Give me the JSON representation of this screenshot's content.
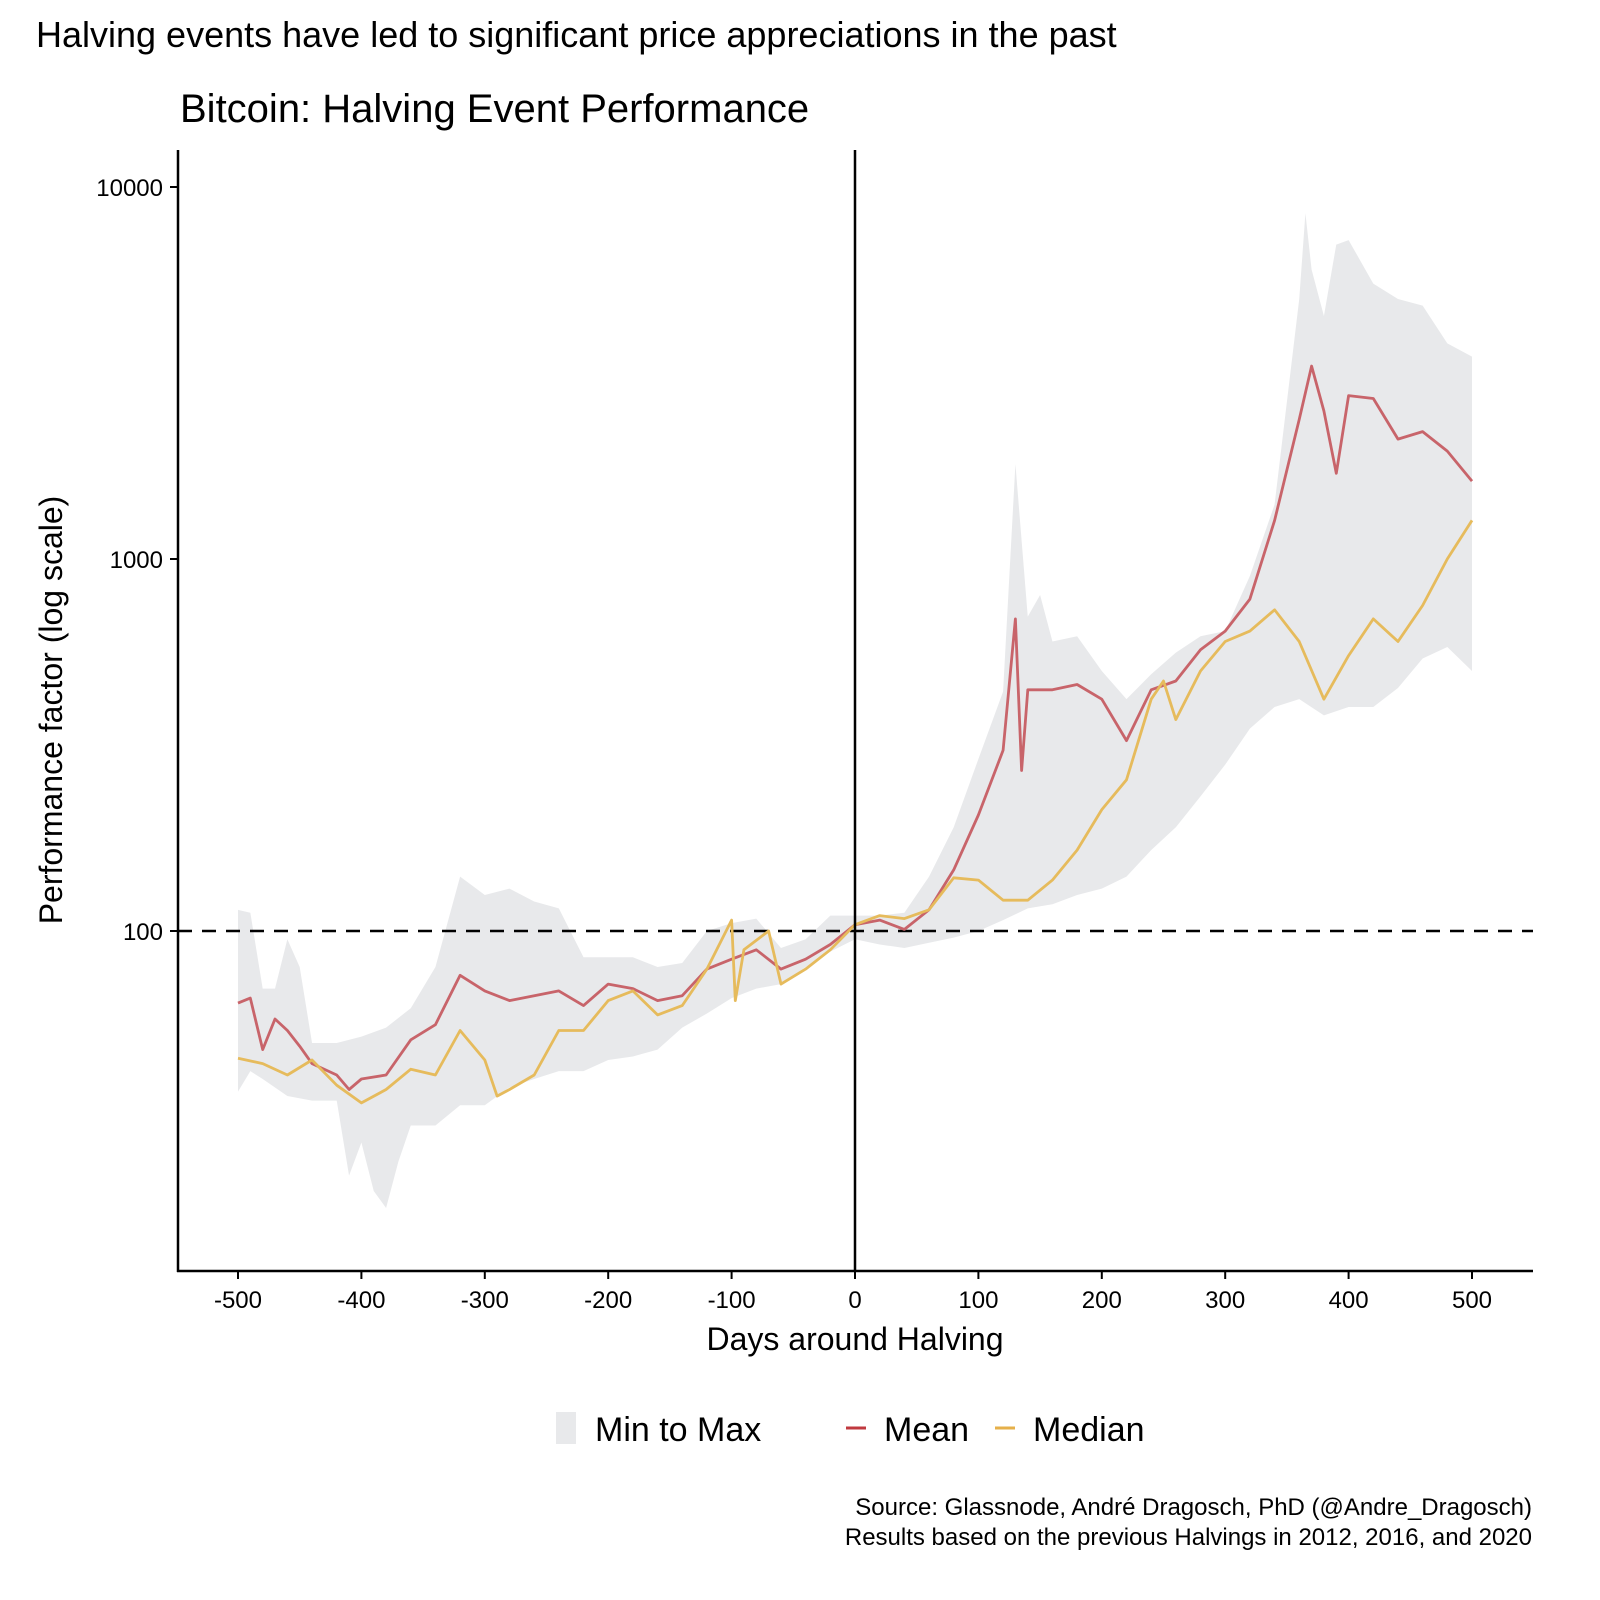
{
  "headline": "Halving events have led to significant price appreciations in the past",
  "chart_data": {
    "type": "line",
    "title": "Bitcoin: Halving Event Performance",
    "xlabel": "Days around Halving",
    "ylabel": "Performance factor (log scale)",
    "xlim": [
      -550,
      550
    ],
    "ylim": [
      12.2,
      12600
    ],
    "y_scale": "log",
    "grid": false,
    "x_ticks": [
      -500,
      -400,
      -300,
      -200,
      -100,
      0,
      100,
      200,
      300,
      400,
      500
    ],
    "x_tick_labels": [
      "-500",
      "-400",
      "-300",
      "-200",
      "-100",
      "0",
      "100",
      "200",
      "300",
      "400",
      "500"
    ],
    "y_ticks": [
      100,
      1000,
      10000
    ],
    "y_tick_labels": [
      "100",
      "1000",
      "10000"
    ],
    "reference_lines": {
      "horizontal": 100,
      "vertical": 0
    },
    "legend_position": "bottom",
    "legend": [
      "Min to Max",
      "Mean",
      "Median"
    ],
    "band": {
      "name": "Min to Max",
      "color": "#e8e9eb",
      "max": {
        "x": [
          -500,
          -490,
          -480,
          -470,
          -460,
          -450,
          -440,
          -420,
          -400,
          -380,
          -360,
          -340,
          -320,
          -300,
          -280,
          -260,
          -240,
          -220,
          -200,
          -180,
          -160,
          -140,
          -120,
          -100,
          -80,
          -60,
          -40,
          -20,
          0,
          20,
          40,
          60,
          80,
          100,
          120,
          130,
          140,
          150,
          160,
          180,
          200,
          220,
          240,
          260,
          280,
          300,
          320,
          340,
          360,
          365,
          370,
          380,
          390,
          400,
          420,
          440,
          460,
          480,
          500
        ],
        "y": [
          114,
          112,
          70,
          70,
          95,
          80,
          50,
          50,
          52,
          55,
          62,
          80,
          140,
          125,
          130,
          120,
          115,
          85,
          85,
          85,
          80,
          82,
          100,
          105,
          108,
          90,
          95,
          110,
          110,
          110,
          112,
          140,
          190,
          290,
          440,
          1800,
          700,
          800,
          600,
          620,
          500,
          420,
          490,
          560,
          620,
          640,
          900,
          1400,
          5000,
          8500,
          6000,
          4500,
          7000,
          7200,
          5500,
          5000,
          4800,
          3800,
          3500
        ]
      },
      "min": {
        "x": [
          -500,
          -490,
          -480,
          -460,
          -440,
          -420,
          -410,
          -400,
          -390,
          -380,
          -370,
          -360,
          -340,
          -320,
          -300,
          -280,
          -260,
          -240,
          -220,
          -200,
          -180,
          -160,
          -140,
          -120,
          -100,
          -80,
          -60,
          -40,
          -20,
          0,
          20,
          40,
          60,
          80,
          100,
          120,
          140,
          160,
          180,
          200,
          220,
          240,
          260,
          280,
          300,
          320,
          340,
          360,
          380,
          400,
          420,
          440,
          460,
          480,
          500
        ],
        "y": [
          37,
          42,
          40,
          36,
          35,
          35,
          22,
          27,
          20,
          18,
          24,
          30,
          30,
          34,
          34,
          38,
          40,
          42,
          42,
          45,
          46,
          48,
          55,
          60,
          66,
          70,
          72,
          80,
          88,
          95,
          92,
          90,
          93,
          96,
          100,
          107,
          115,
          118,
          125,
          130,
          140,
          165,
          190,
          230,
          280,
          350,
          400,
          420,
          380,
          400,
          400,
          450,
          540,
          580,
          500
        ]
      }
    },
    "series": [
      {
        "name": "Mean",
        "color": "#c8646a",
        "x": [
          -500,
          -490,
          -480,
          -470,
          -460,
          -450,
          -440,
          -420,
          -410,
          -400,
          -380,
          -360,
          -340,
          -320,
          -300,
          -280,
          -260,
          -240,
          -220,
          -200,
          -180,
          -160,
          -140,
          -120,
          -100,
          -80,
          -60,
          -40,
          -20,
          0,
          20,
          40,
          60,
          80,
          100,
          120,
          130,
          135,
          140,
          160,
          180,
          200,
          220,
          240,
          260,
          280,
          300,
          320,
          340,
          360,
          370,
          380,
          390,
          400,
          420,
          440,
          460,
          480,
          500
        ],
        "y": [
          64,
          66,
          48,
          58,
          54,
          49,
          44,
          41,
          37.5,
          40,
          41,
          51,
          56,
          76,
          69,
          65,
          67,
          69,
          63,
          72,
          70,
          65,
          67,
          79,
          84,
          89,
          79,
          84,
          92,
          104,
          107,
          101,
          114,
          146,
          205,
          306,
          690,
          270,
          445,
          445,
          460,
          420,
          325,
          445,
          470,
          570,
          640,
          780,
          1270,
          2370,
          3300,
          2500,
          1700,
          2750,
          2700,
          2100,
          2200,
          1950,
          1620
        ]
      },
      {
        "name": "Median",
        "color": "#e6bb5c",
        "x": [
          -500,
          -480,
          -460,
          -440,
          -420,
          -400,
          -380,
          -360,
          -340,
          -320,
          -300,
          -290,
          -280,
          -260,
          -240,
          -220,
          -200,
          -180,
          -160,
          -140,
          -120,
          -100,
          -97,
          -90,
          -70,
          -60,
          -40,
          -20,
          0,
          20,
          40,
          60,
          80,
          100,
          120,
          140,
          160,
          180,
          200,
          220,
          240,
          250,
          260,
          280,
          300,
          320,
          340,
          360,
          380,
          400,
          420,
          440,
          460,
          480,
          500
        ],
        "y": [
          45.5,
          44,
          41,
          45,
          38.5,
          34.5,
          37.5,
          42.5,
          41,
          54,
          45,
          36,
          37.5,
          41,
          54,
          54,
          65,
          69,
          59.5,
          63,
          79,
          107,
          65,
          89,
          100,
          72,
          79,
          89,
          104,
          110,
          108,
          114,
          139,
          137,
          121,
          121,
          137,
          165,
          212,
          255,
          420,
          470,
          370,
          500,
          600,
          640,
          730,
          600,
          420,
          550,
          690,
          600,
          750,
          1000,
          1270
        ]
      }
    ]
  },
  "legend_items": [
    {
      "label": "Min to Max",
      "color": "#e8e9eb"
    },
    {
      "label": "Mean",
      "color": "#c0393f"
    },
    {
      "label": "Median",
      "color": "#e6b04a"
    }
  ],
  "source_line1": "Source: Glassnode, André Dragosch, PhD (@Andre_Dragosch)",
  "source_line2": "Results based on the previous Halvings in 2012, 2016, and 2020"
}
